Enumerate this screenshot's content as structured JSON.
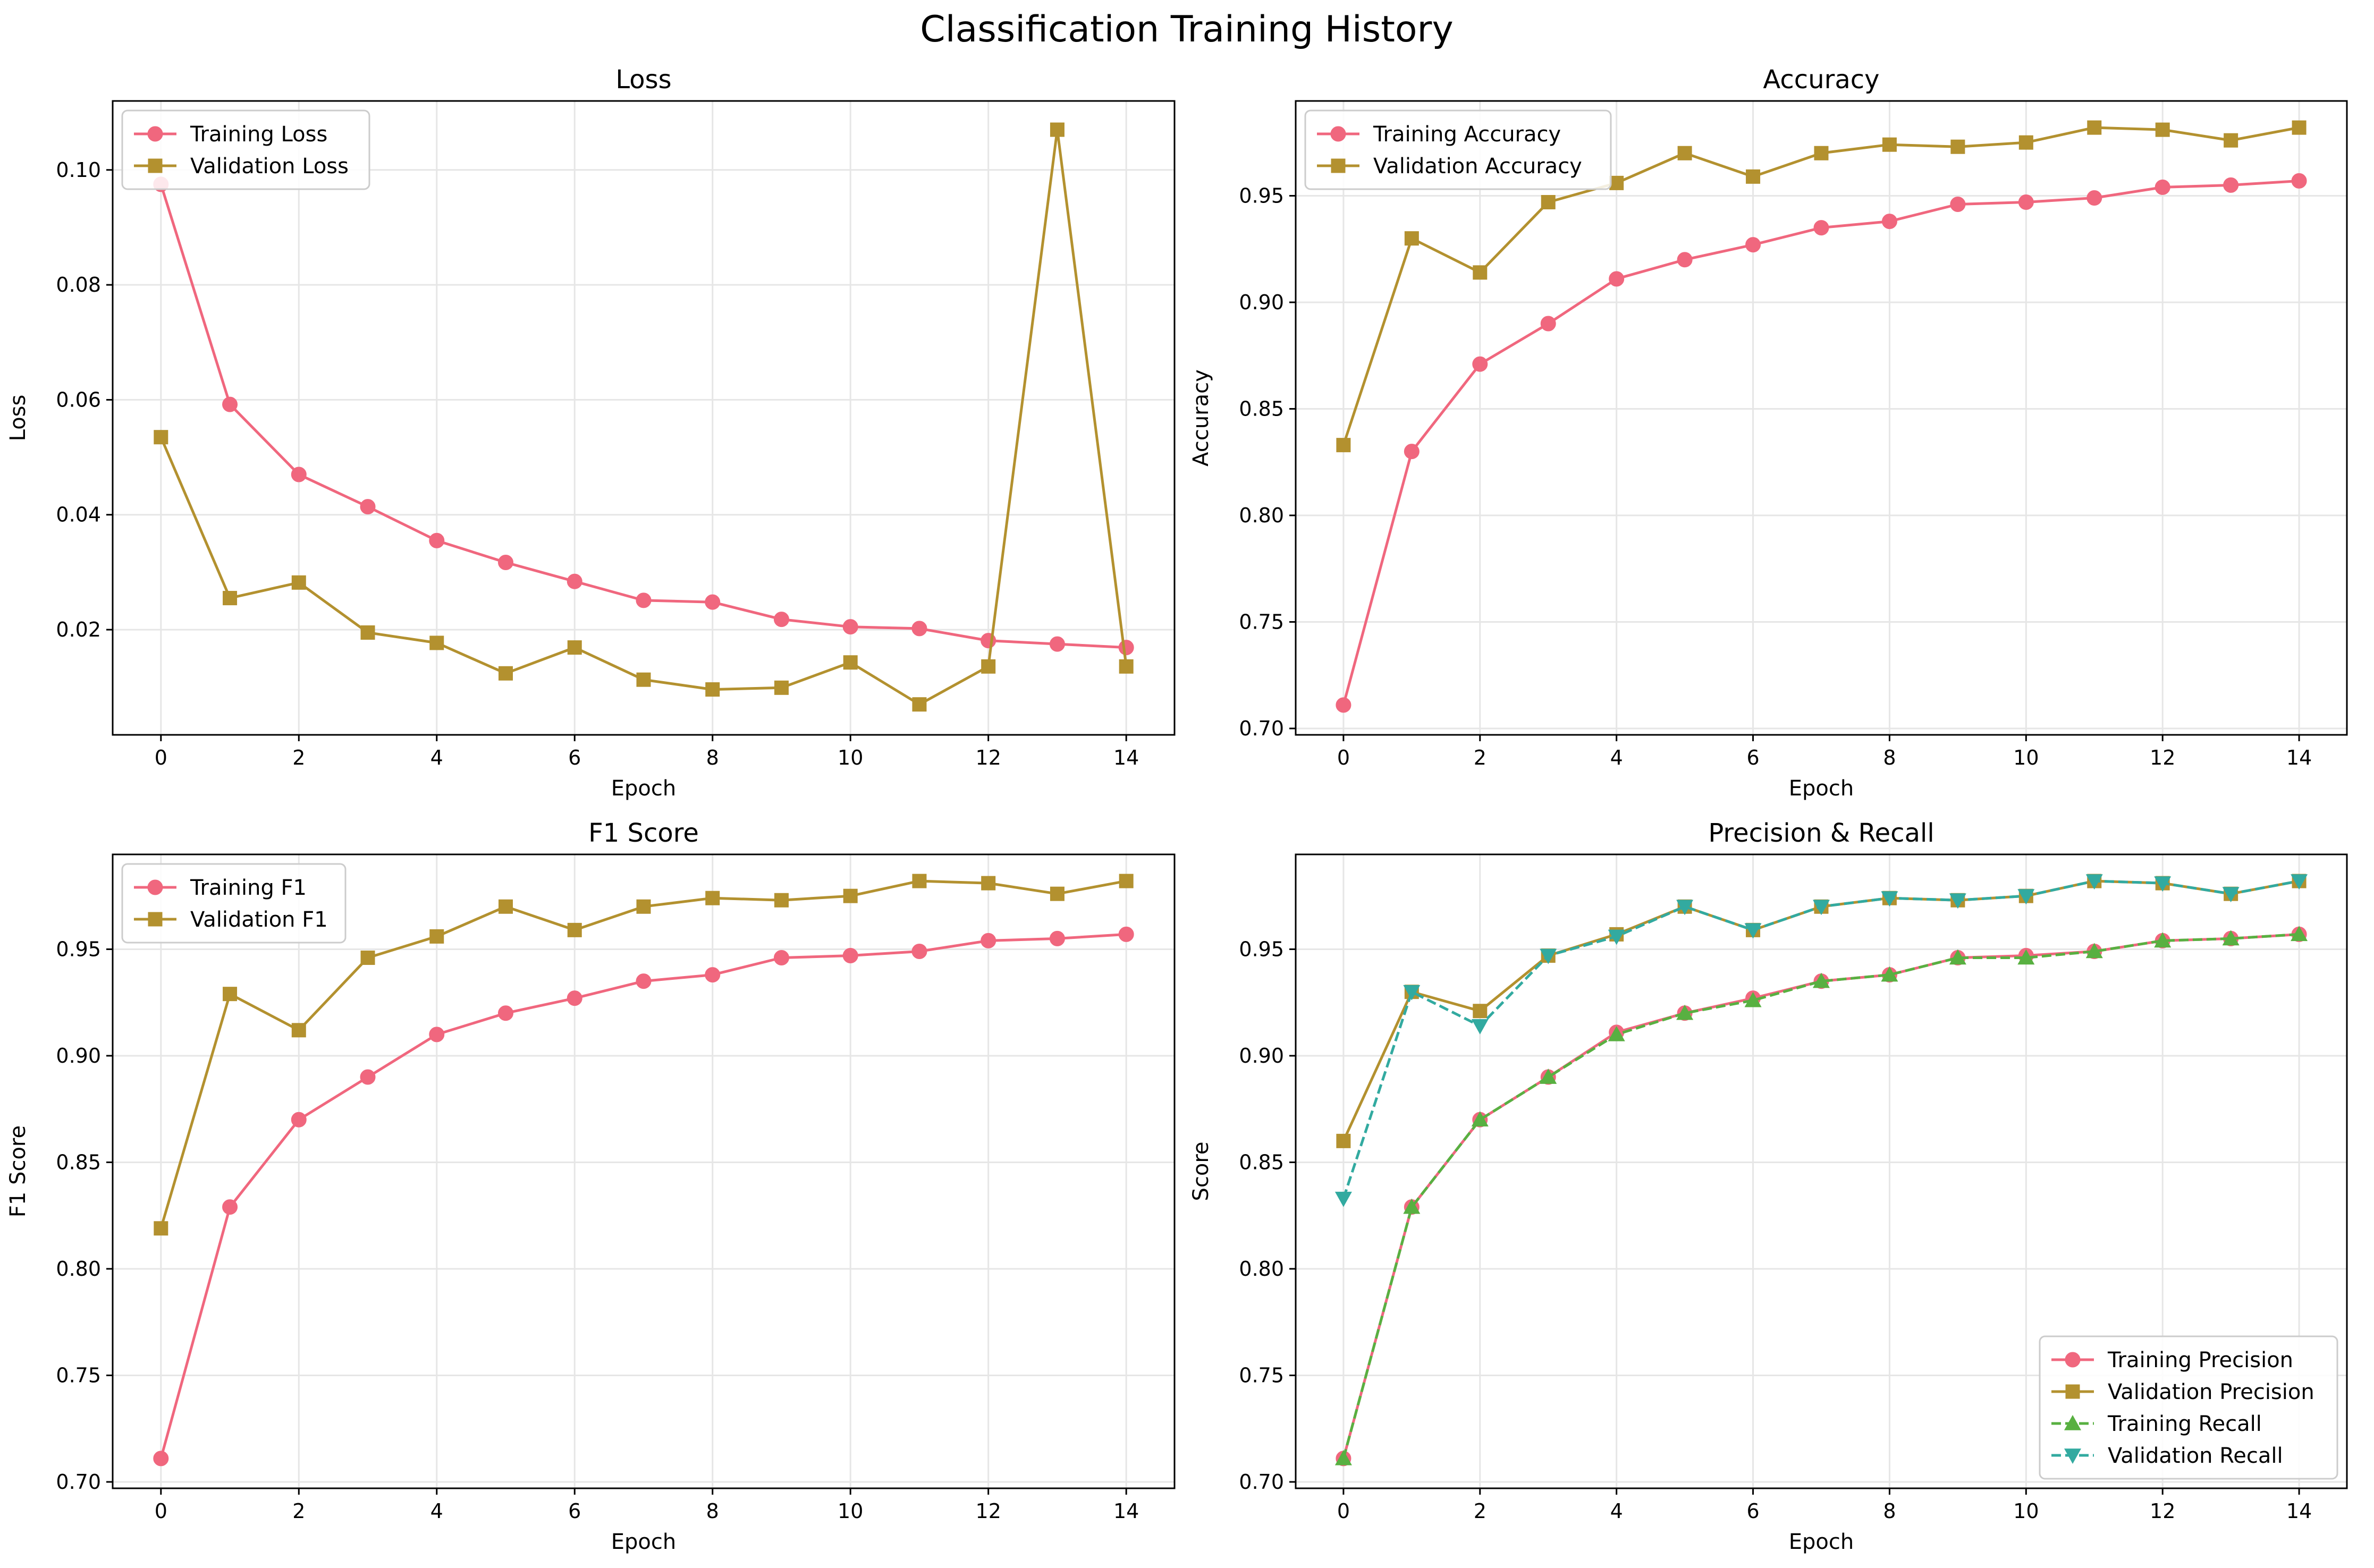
{
  "figure": {
    "title": "Classification Training History"
  },
  "colors": {
    "training": "#f0677e",
    "validation": "#b3912f",
    "training_recall": "#58b041",
    "validation_recall": "#32aaa0",
    "grid": "#e6e6e6",
    "axes": "#000000"
  },
  "chart_data": [
    {
      "type": "line",
      "title": "Loss",
      "xlabel": "Epoch",
      "ylabel": "Loss",
      "xlim": [
        -0.7,
        14.7
      ],
      "ylim": [
        0.0017,
        0.112
      ],
      "xticks": [
        0,
        2,
        4,
        6,
        8,
        10,
        12,
        14
      ],
      "yticks": [
        0.02,
        0.04,
        0.06,
        0.08,
        0.1
      ],
      "ytick_labels": [
        "0.02",
        "0.04",
        "0.06",
        "0.08",
        "0.10"
      ],
      "grid": true,
      "legend_position": "upper-left",
      "x": [
        0,
        1,
        2,
        3,
        4,
        5,
        6,
        7,
        8,
        9,
        10,
        11,
        12,
        13,
        14
      ],
      "series": [
        {
          "name": "Training Loss",
          "marker": "circle",
          "linestyle": "solid",
          "color": "#f0677e",
          "values": [
            0.0975,
            0.0592,
            0.047,
            0.0414,
            0.0355,
            0.0317,
            0.0284,
            0.0251,
            0.0248,
            0.0218,
            0.0205,
            0.0202,
            0.0181,
            0.0175,
            0.0169
          ]
        },
        {
          "name": "Validation Loss",
          "marker": "square",
          "linestyle": "solid",
          "color": "#b3912f",
          "values": [
            0.0535,
            0.0255,
            0.0282,
            0.0195,
            0.0177,
            0.0124,
            0.0169,
            0.0113,
            0.0096,
            0.0099,
            0.0143,
            0.007,
            0.0136,
            0.107,
            0.0136
          ]
        }
      ]
    },
    {
      "type": "line",
      "title": "Accuracy",
      "xlabel": "Epoch",
      "ylabel": "Accuracy",
      "xlim": [
        -0.7,
        14.7
      ],
      "ylim": [
        0.697,
        0.9945
      ],
      "xticks": [
        0,
        2,
        4,
        6,
        8,
        10,
        12,
        14
      ],
      "yticks": [
        0.7,
        0.75,
        0.8,
        0.85,
        0.9,
        0.95
      ],
      "ytick_labels": [
        "0.70",
        "0.75",
        "0.80",
        "0.85",
        "0.90",
        "0.95"
      ],
      "grid": true,
      "legend_position": "upper-left",
      "x": [
        0,
        1,
        2,
        3,
        4,
        5,
        6,
        7,
        8,
        9,
        10,
        11,
        12,
        13,
        14
      ],
      "series": [
        {
          "name": "Training Accuracy",
          "marker": "circle",
          "linestyle": "solid",
          "color": "#f0677e",
          "values": [
            0.711,
            0.83,
            0.871,
            0.89,
            0.911,
            0.92,
            0.927,
            0.935,
            0.938,
            0.946,
            0.947,
            0.949,
            0.954,
            0.955,
            0.957
          ]
        },
        {
          "name": "Validation Accuracy",
          "marker": "square",
          "linestyle": "solid",
          "color": "#b3912f",
          "values": [
            0.833,
            0.93,
            0.914,
            0.947,
            0.956,
            0.97,
            0.959,
            0.97,
            0.974,
            0.973,
            0.975,
            0.982,
            0.981,
            0.976,
            0.982
          ]
        }
      ]
    },
    {
      "type": "line",
      "title": "F1 Score",
      "xlabel": "Epoch",
      "ylabel": "F1 Score",
      "xlim": [
        -0.7,
        14.7
      ],
      "ylim": [
        0.697,
        0.9945
      ],
      "xticks": [
        0,
        2,
        4,
        6,
        8,
        10,
        12,
        14
      ],
      "yticks": [
        0.7,
        0.75,
        0.8,
        0.85,
        0.9,
        0.95
      ],
      "ytick_labels": [
        "0.70",
        "0.75",
        "0.80",
        "0.85",
        "0.90",
        "0.95"
      ],
      "grid": true,
      "legend_position": "upper-left",
      "x": [
        0,
        1,
        2,
        3,
        4,
        5,
        6,
        7,
        8,
        9,
        10,
        11,
        12,
        13,
        14
      ],
      "series": [
        {
          "name": "Training F1",
          "marker": "circle",
          "linestyle": "solid",
          "color": "#f0677e",
          "values": [
            0.711,
            0.829,
            0.87,
            0.89,
            0.91,
            0.92,
            0.927,
            0.935,
            0.938,
            0.946,
            0.947,
            0.949,
            0.954,
            0.955,
            0.957
          ]
        },
        {
          "name": "Validation F1",
          "marker": "square",
          "linestyle": "solid",
          "color": "#b3912f",
          "values": [
            0.819,
            0.929,
            0.912,
            0.946,
            0.956,
            0.97,
            0.959,
            0.97,
            0.974,
            0.973,
            0.975,
            0.982,
            0.981,
            0.976,
            0.982
          ]
        }
      ]
    },
    {
      "type": "line",
      "title": "Precision & Recall",
      "xlabel": "Epoch",
      "ylabel": "Score",
      "xlim": [
        -0.7,
        14.7
      ],
      "ylim": [
        0.697,
        0.9945
      ],
      "xticks": [
        0,
        2,
        4,
        6,
        8,
        10,
        12,
        14
      ],
      "yticks": [
        0.7,
        0.75,
        0.8,
        0.85,
        0.9,
        0.95
      ],
      "ytick_labels": [
        "0.70",
        "0.75",
        "0.80",
        "0.85",
        "0.90",
        "0.95"
      ],
      "grid": true,
      "legend_position": "lower-right",
      "x": [
        0,
        1,
        2,
        3,
        4,
        5,
        6,
        7,
        8,
        9,
        10,
        11,
        12,
        13,
        14
      ],
      "series": [
        {
          "name": "Training Precision",
          "marker": "circle",
          "linestyle": "solid",
          "color": "#f0677e",
          "values": [
            0.711,
            0.829,
            0.87,
            0.89,
            0.911,
            0.92,
            0.927,
            0.935,
            0.938,
            0.946,
            0.947,
            0.949,
            0.954,
            0.955,
            0.957
          ]
        },
        {
          "name": "Validation Precision",
          "marker": "square",
          "linestyle": "solid",
          "color": "#b3912f",
          "values": [
            0.86,
            0.93,
            0.921,
            0.947,
            0.957,
            0.97,
            0.959,
            0.97,
            0.974,
            0.973,
            0.975,
            0.982,
            0.981,
            0.976,
            0.982
          ]
        },
        {
          "name": "Training Recall",
          "marker": "triangle-up",
          "linestyle": "dashed",
          "color": "#58b041",
          "values": [
            0.711,
            0.829,
            0.87,
            0.89,
            0.91,
            0.92,
            0.926,
            0.935,
            0.938,
            0.946,
            0.946,
            0.949,
            0.954,
            0.955,
            0.957
          ]
        },
        {
          "name": "Validation Recall",
          "marker": "triangle-down",
          "linestyle": "dashed",
          "color": "#32aaa0",
          "values": [
            0.833,
            0.93,
            0.914,
            0.947,
            0.956,
            0.97,
            0.959,
            0.97,
            0.974,
            0.973,
            0.975,
            0.982,
            0.981,
            0.976,
            0.982
          ]
        }
      ]
    }
  ]
}
